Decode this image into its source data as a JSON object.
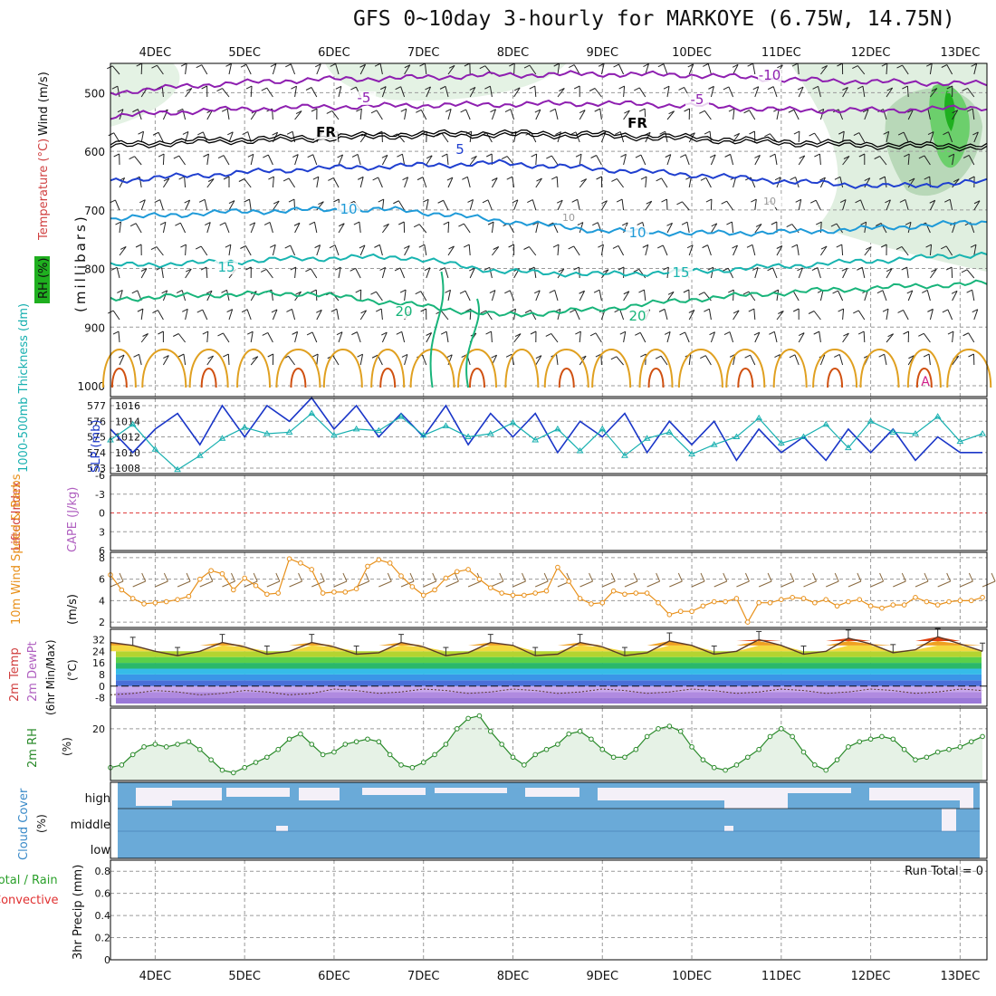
{
  "title": "GFS 0~10day 3-hourly for MARKOYE (6.75W, 14.75N)",
  "colors": {
    "background": "#ffffff",
    "grid": "#9a9a9a",
    "frame": "#000000",
    "purple": "#8e1fb0",
    "blue_dark": "#1f3fcf",
    "blue_light": "#1e9ad8",
    "teal": "#18b4b0",
    "sea_green": "#18b47a",
    "orange": "#e0a020",
    "orange_dark": "#d05010",
    "magenta": "#d0208a",
    "slp_line": "#1a36c8",
    "thickness_line": "#18b0b0",
    "wind_speed": "#e8901a",
    "wind_barb": "#8a6a40",
    "rh_line": "#2a8a2a",
    "rh_fill": "#e6f2e6",
    "cloud": "#6aaad8",
    "cloud_clear": "#f4f0f8",
    "lifted_zero": "#e04040"
  },
  "days": [
    "4DEC",
    "5DEC",
    "6DEC",
    "7DEC",
    "8DEC",
    "9DEC",
    "10DEC",
    "11DEC",
    "12DEC",
    "13DEC"
  ],
  "chart_data": [
    {
      "type": "line",
      "panel": "upper-air",
      "labels": {
        "rh": "RH (%)",
        "temperature": "Temperature (°C)",
        "wind": "Wind (m/s)",
        "units": "(millibars)"
      },
      "y_ticks": [
        "500",
        "600",
        "700",
        "800",
        "900",
        "1000"
      ],
      "ylim": [
        1000,
        450
      ],
      "isotherm_labels": [
        "-10",
        "-5",
        "-5",
        "FR",
        "FR",
        "5",
        "10",
        "10",
        "15",
        "15",
        "20",
        "20",
        "10",
        "10"
      ],
      "series": [
        {
          "name": "-10",
          "color": "purple",
          "values": [
            -10,
            -10,
            -10,
            -10,
            -10,
            -10,
            -10,
            -10,
            -10,
            -10
          ],
          "pressure": [
            500,
            486,
            478,
            475,
            470,
            468,
            470,
            478,
            482,
            485
          ]
        },
        {
          "name": "-5",
          "color": "purple",
          "values": [
            -5,
            -5,
            -5,
            -5,
            -5,
            -5,
            -5,
            -5,
            -5,
            -5
          ],
          "pressure": [
            540,
            530,
            525,
            522,
            520,
            518,
            522,
            530,
            530,
            525
          ]
        },
        {
          "name": "FR",
          "color": "frame",
          "values": [
            0,
            0,
            0,
            0,
            0,
            0,
            0,
            0,
            0,
            0
          ],
          "pressure": [
            590,
            582,
            578,
            572,
            570,
            572,
            578,
            585,
            590,
            592
          ]
        },
        {
          "name": "5",
          "color": "blue_dark",
          "values": [
            5,
            5,
            5,
            5,
            5,
            5,
            5,
            5,
            5,
            5
          ],
          "pressure": [
            650,
            640,
            630,
            625,
            620,
            630,
            640,
            652,
            660,
            652
          ]
        },
        {
          "name": "10",
          "color": "blue_light",
          "values": [
            10,
            10,
            10,
            10,
            10,
            10,
            10,
            10,
            10,
            10
          ],
          "pressure": [
            715,
            705,
            700,
            700,
            718,
            735,
            740,
            738,
            730,
            720
          ]
        },
        {
          "name": "15",
          "color": "teal",
          "values": [
            15,
            15,
            15,
            15,
            15,
            15,
            15,
            15,
            15,
            15
          ],
          "pressure": [
            795,
            790,
            783,
            780,
            805,
            810,
            805,
            795,
            785,
            775
          ]
        },
        {
          "name": "20",
          "color": "sea_green",
          "values": [
            20,
            20,
            20,
            20,
            20,
            20,
            20,
            20,
            20,
            20
          ],
          "pressure": [
            852,
            845,
            842,
            860,
            880,
            870,
            852,
            840,
            832,
            825
          ]
        }
      ]
    },
    {
      "type": "line",
      "panel": "slp-thickness",
      "labels": {
        "thickness": "1000-500mb Thickness (dm)",
        "slp": "SLP (mb)"
      },
      "left_ticks": [
        "577",
        "576",
        "575",
        "574",
        "573"
      ],
      "right_ticks": [
        "1016",
        "1014",
        "1012",
        "1010",
        "1008"
      ],
      "x_days": [
        3.5,
        3.75,
        4.0,
        4.25,
        4.5,
        4.75,
        5.0,
        5.25,
        5.5,
        5.75,
        6.0,
        6.25,
        6.5,
        6.75,
        7.0,
        7.25,
        7.5,
        7.75,
        8.0,
        8.25,
        8.5,
        8.75,
        9.0,
        9.25,
        9.5,
        9.75,
        10.0,
        10.25,
        10.5,
        10.75,
        11.0,
        11.25,
        11.5,
        11.75,
        12.0,
        12.25,
        12.5,
        12.75,
        13.0,
        13.25
      ],
      "series": [
        {
          "name": "SLP",
          "color": "slp_line",
          "unit": "mb",
          "values": [
            1013,
            1010,
            1013,
            1015,
            1011,
            1016,
            1012,
            1016,
            1014,
            1017,
            1013,
            1016,
            1012,
            1015,
            1012,
            1016,
            1011,
            1015,
            1012,
            1015,
            1010,
            1014,
            1012,
            1015,
            1010,
            1014,
            1011,
            1014,
            1009,
            1013,
            1010,
            1012,
            1009,
            1013,
            1010,
            1013,
            1009,
            1012,
            1010,
            1010
          ]
        },
        {
          "name": "Thickness",
          "color": "thickness_line",
          "unit": "dm",
          "values": [
            574.8,
            575.8,
            574.2,
            572.9,
            573.8,
            574.9,
            575.6,
            575.2,
            575.3,
            576.5,
            575.1,
            575.5,
            575.4,
            576.3,
            575.1,
            575.7,
            575.0,
            575.2,
            575.9,
            574.8,
            575.5,
            574.1,
            575.5,
            573.8,
            574.9,
            575.3,
            573.9,
            574.5,
            575.0,
            576.2,
            574.6,
            575.0,
            575.8,
            574.3,
            576.0,
            575.3,
            575.2,
            576.3,
            574.7,
            575.2
          ]
        }
      ]
    },
    {
      "type": "line",
      "panel": "lifted-index-cape",
      "labels": {
        "lifted": "Lifted Index",
        "cape": "CAPE (J/kg)"
      },
      "y_ticks": [
        "-6",
        "-3",
        "0",
        "3",
        "6"
      ],
      "ylim": [
        6,
        -6
      ],
      "series": [
        {
          "name": "Lifted Index",
          "color": "lifted_zero",
          "values": [
            0
          ]
        }
      ]
    },
    {
      "type": "line",
      "panel": "10m-wind",
      "labels": {
        "wind": "10m Wind Speed & Barbs",
        "unit": "(m/s)"
      },
      "y_ticks": [
        "8",
        "6",
        "4",
        "2"
      ],
      "ylim": [
        1.5,
        8.5
      ],
      "x_days": [
        3.5,
        3.625,
        3.75,
        3.875,
        4.0,
        4.125,
        4.25,
        4.375,
        4.5,
        4.625,
        4.75,
        4.875,
        5.0,
        5.125,
        5.25,
        5.375,
        5.5,
        5.625,
        5.75,
        5.875,
        6.0,
        6.125,
        6.25,
        6.375,
        6.5,
        6.625,
        6.75,
        6.875,
        7.0,
        7.125,
        7.25,
        7.375,
        7.5,
        7.625,
        7.75,
        7.875,
        8.0,
        8.125,
        8.25,
        8.375,
        8.5,
        8.625,
        8.75,
        8.875,
        9.0,
        9.125,
        9.25,
        9.375,
        9.5,
        9.625,
        9.75,
        9.875,
        10.0,
        10.125,
        10.25,
        10.375,
        10.5,
        10.625,
        10.75,
        10.875,
        11.0,
        11.125,
        11.25,
        11.375,
        11.5,
        11.625,
        11.75,
        11.875,
        12.0,
        12.125,
        12.25,
        12.375,
        12.5,
        12.625,
        12.75,
        12.875,
        13.0,
        13.125,
        13.25
      ],
      "series": [
        {
          "name": "Wind Speed",
          "color": "wind_speed",
          "unit": "m/s",
          "values": [
            6.4,
            5.0,
            4.2,
            3.7,
            3.8,
            3.9,
            4.1,
            4.4,
            6.0,
            6.8,
            6.5,
            5.0,
            6.1,
            5.4,
            4.6,
            4.7,
            7.9,
            7.5,
            6.9,
            4.7,
            4.8,
            4.8,
            5.1,
            7.2,
            7.8,
            7.5,
            6.3,
            5.3,
            4.5,
            5.0,
            6.1,
            6.7,
            6.9,
            6.0,
            5.2,
            4.7,
            4.5,
            4.5,
            4.7,
            4.9,
            7.1,
            5.8,
            4.2,
            3.7,
            3.8,
            4.9,
            4.6,
            4.7,
            4.7,
            3.8,
            2.7,
            3.0,
            3.0,
            3.5,
            3.9,
            3.9,
            4.2,
            2.0,
            3.8,
            3.8,
            4.1,
            4.3,
            4.2,
            3.8,
            4.1,
            3.5,
            3.9,
            4.1,
            3.5,
            3.3,
            3.6,
            3.6,
            4.3,
            3.9,
            3.6,
            3.9,
            4.0,
            4.0,
            4.3
          ]
        }
      ]
    },
    {
      "type": "area",
      "panel": "2m-temp",
      "labels": {
        "temp": "2m Temp",
        "dewpt": "2m DewPt",
        "minmax": "(6hr Min/Max)",
        "unit": "(°C)"
      },
      "y_ticks": [
        "32",
        "24",
        "16",
        "8",
        "0",
        "-8"
      ],
      "ylim": [
        -12,
        36
      ],
      "x_days": [
        3.5,
        3.75,
        4.0,
        4.25,
        4.5,
        4.75,
        5.0,
        5.25,
        5.5,
        5.75,
        6.0,
        6.25,
        6.5,
        6.75,
        7.0,
        7.25,
        7.5,
        7.75,
        8.0,
        8.25,
        8.5,
        8.75,
        9.0,
        9.25,
        9.5,
        9.75,
        10.0,
        10.25,
        10.5,
        10.75,
        11.0,
        11.25,
        11.5,
        11.75,
        12.0,
        12.25,
        12.5,
        12.75,
        13.0,
        13.25
      ],
      "series": [
        {
          "name": "2m Temp",
          "values": [
            30,
            28,
            24,
            21,
            24,
            30,
            27,
            22,
            24,
            30,
            27,
            22,
            23,
            30,
            27,
            21,
            23,
            30,
            28,
            21,
            22,
            30,
            27,
            21,
            23,
            31,
            28,
            22,
            24,
            32,
            28,
            22,
            24,
            33,
            29,
            23,
            25,
            34,
            29,
            24
          ]
        },
        {
          "name": "2m DewPt",
          "values": [
            -6,
            -5,
            -3,
            -4,
            -6,
            -5,
            -3,
            -4,
            -6,
            -5,
            -2,
            -3,
            -5,
            -4,
            -2,
            -3,
            -5,
            -4,
            -2,
            -3,
            -5,
            -4,
            -2,
            -3,
            -5,
            -4,
            -2,
            -3,
            -5,
            -4,
            -2,
            -3,
            -5,
            -4,
            -2,
            -3,
            -5,
            -4,
            -2,
            -3
          ]
        }
      ]
    },
    {
      "type": "line",
      "panel": "2m-rh",
      "labels": {
        "rh": "2m RH",
        "unit": "(%)"
      },
      "y_ticks": [
        "20"
      ],
      "ylim": [
        0,
        28
      ],
      "x_days": [
        3.5,
        3.625,
        3.75,
        3.875,
        4.0,
        4.125,
        4.25,
        4.375,
        4.5,
        4.625,
        4.75,
        4.875,
        5.0,
        5.125,
        5.25,
        5.375,
        5.5,
        5.625,
        5.75,
        5.875,
        6.0,
        6.125,
        6.25,
        6.375,
        6.5,
        6.625,
        6.75,
        6.875,
        7.0,
        7.125,
        7.25,
        7.375,
        7.5,
        7.625,
        7.75,
        7.875,
        8.0,
        8.125,
        8.25,
        8.375,
        8.5,
        8.625,
        8.75,
        8.875,
        9.0,
        9.125,
        9.25,
        9.375,
        9.5,
        9.625,
        9.75,
        9.875,
        10.0,
        10.125,
        10.25,
        10.375,
        10.5,
        10.625,
        10.75,
        10.875,
        11.0,
        11.125,
        11.25,
        11.375,
        11.5,
        11.625,
        11.75,
        11.875,
        12.0,
        12.125,
        12.25,
        12.375,
        12.5,
        12.625,
        12.75,
        12.875,
        13.0,
        13.125,
        13.25
      ],
      "series": [
        {
          "name": "2m RH",
          "color": "rh_line",
          "unit": "%",
          "values": [
            5,
            6,
            10,
            13,
            14,
            13,
            14,
            15,
            12,
            8,
            4,
            3,
            5,
            7,
            9,
            12,
            16,
            18,
            14,
            10,
            11,
            14,
            15,
            16,
            15,
            10,
            6,
            5,
            7,
            10,
            14,
            20,
            24,
            25,
            19,
            14,
            9,
            6,
            10,
            12,
            14,
            18,
            19,
            16,
            12,
            9,
            9,
            12,
            17,
            20,
            21,
            19,
            13,
            8,
            5,
            4,
            6,
            9,
            12,
            17,
            20,
            17,
            11,
            6,
            4,
            8,
            13,
            15,
            16,
            17,
            16,
            12,
            8,
            9,
            11,
            12,
            13,
            15,
            17
          ]
        }
      ]
    },
    {
      "type": "bar",
      "panel": "cloud-cover",
      "labels": {
        "cloud": "Cloud Cover",
        "unit": "(%)",
        "high": "high",
        "middle": "middle",
        "low": "low"
      },
      "y_ticks": [
        "high",
        "middle",
        "low"
      ]
    },
    {
      "type": "bar",
      "panel": "3hr-precip",
      "labels": {
        "precip": "3hr Precip (mm)",
        "total": "Total / Rain",
        "convective": "Convective",
        "run_total": "Run Total = 0"
      },
      "y_ticks": [
        "0.8",
        "0.6",
        "0.4",
        "0.2",
        "0"
      ],
      "ylim": [
        0,
        0.9
      ],
      "series": [
        {
          "name": "Total",
          "values": [
            0
          ]
        }
      ]
    }
  ]
}
